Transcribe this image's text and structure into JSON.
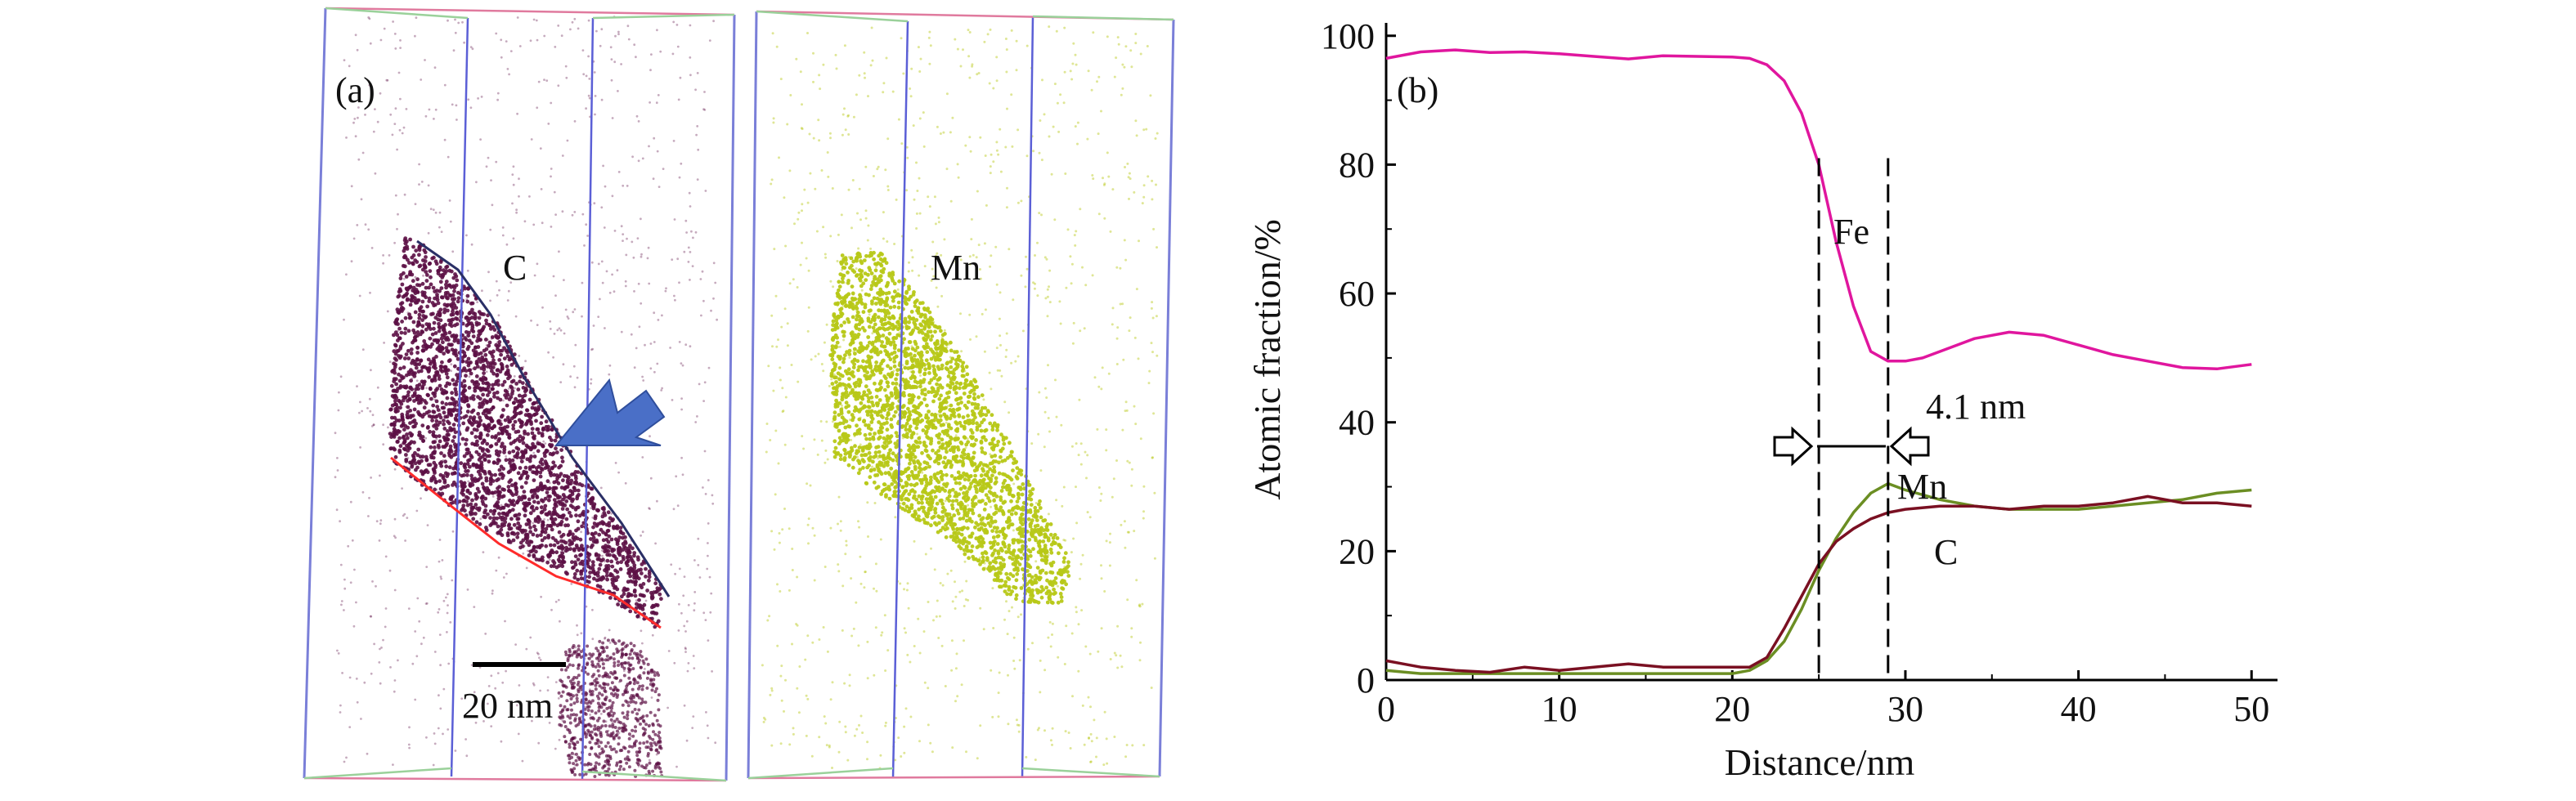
{
  "figure": {
    "panel_a": {
      "label": "(a)",
      "left_map_element": "C",
      "right_map_element": "Mn",
      "scale_bar_text": "20 nm",
      "colors": {
        "carbon_dots": "#5c0f45",
        "manganese_dots": "#b7c817",
        "box_blue": "#5b5fd6",
        "interface_red": "#ff2b2b",
        "interface_navy": "#2a2f66",
        "arrow_blue": "#4a6fc7"
      }
    },
    "panel_b": {
      "label": "(b)",
      "annotations": {
        "fe": "Fe",
        "mn": "Mn",
        "c": "C",
        "width": "4.1 nm"
      }
    }
  },
  "chart_data": {
    "type": "line",
    "title": "",
    "xlabel": "Distance/nm",
    "ylabel": "Atomic fraction/%",
    "xlim": [
      0,
      51.5
    ],
    "ylim": [
      0,
      102
    ],
    "xticks": [
      0,
      10,
      20,
      30,
      40,
      50
    ],
    "yticks": [
      0,
      20,
      40,
      60,
      80,
      100
    ],
    "grid": false,
    "dashed_markers_x": [
      25,
      29
    ],
    "series": [
      {
        "name": "Fe",
        "color": "#e0169e",
        "x": [
          0,
          2,
          4,
          6,
          8,
          10,
          12,
          14,
          16,
          18,
          20,
          21,
          22,
          23,
          24,
          25,
          26,
          27,
          28,
          29,
          30,
          31,
          32,
          34,
          36,
          38,
          40,
          42,
          44,
          46,
          48,
          50
        ],
        "y": [
          96.5,
          97.5,
          97.8,
          97.4,
          97.5,
          97.2,
          96.8,
          96.4,
          96.9,
          96.8,
          96.7,
          96.5,
          95.5,
          93,
          88,
          80,
          68,
          58,
          51,
          49.5,
          49.5,
          50,
          51,
          53,
          54,
          53.5,
          52,
          50.5,
          49.5,
          48.5,
          48.3,
          49
        ]
      },
      {
        "name": "Mn",
        "color": "#6b8e23",
        "x": [
          0,
          2,
          4,
          6,
          8,
          10,
          12,
          14,
          16,
          18,
          20,
          21,
          22,
          23,
          24,
          25,
          26,
          27,
          28,
          29,
          30,
          32,
          34,
          36,
          38,
          40,
          42,
          44,
          46,
          48,
          50
        ],
        "y": [
          1.5,
          1,
          1,
          1,
          1,
          1,
          1,
          1,
          1,
          1,
          1,
          1.5,
          3,
          6,
          11,
          17,
          22,
          26,
          29,
          30.5,
          29.5,
          28,
          27,
          26.5,
          26.5,
          26.5,
          27,
          27.5,
          28,
          29,
          29.5
        ]
      },
      {
        "name": "C",
        "color": "#7a1022",
        "x": [
          0,
          1,
          2,
          4,
          6,
          8,
          10,
          12,
          14,
          16,
          18,
          20,
          21,
          22,
          23,
          24,
          25,
          26,
          27,
          28,
          29,
          30,
          32,
          34,
          36,
          38,
          40,
          42,
          44,
          46,
          48,
          50
        ],
        "y": [
          3,
          2.5,
          2,
          1.5,
          1.2,
          2,
          1.5,
          2,
          2.5,
          2,
          2,
          2,
          2,
          3.5,
          8,
          13,
          18,
          21.5,
          23.5,
          25,
          26,
          26.5,
          27,
          27,
          26.5,
          27,
          27,
          27.5,
          28.5,
          27.5,
          27.5,
          27
        ]
      }
    ]
  }
}
